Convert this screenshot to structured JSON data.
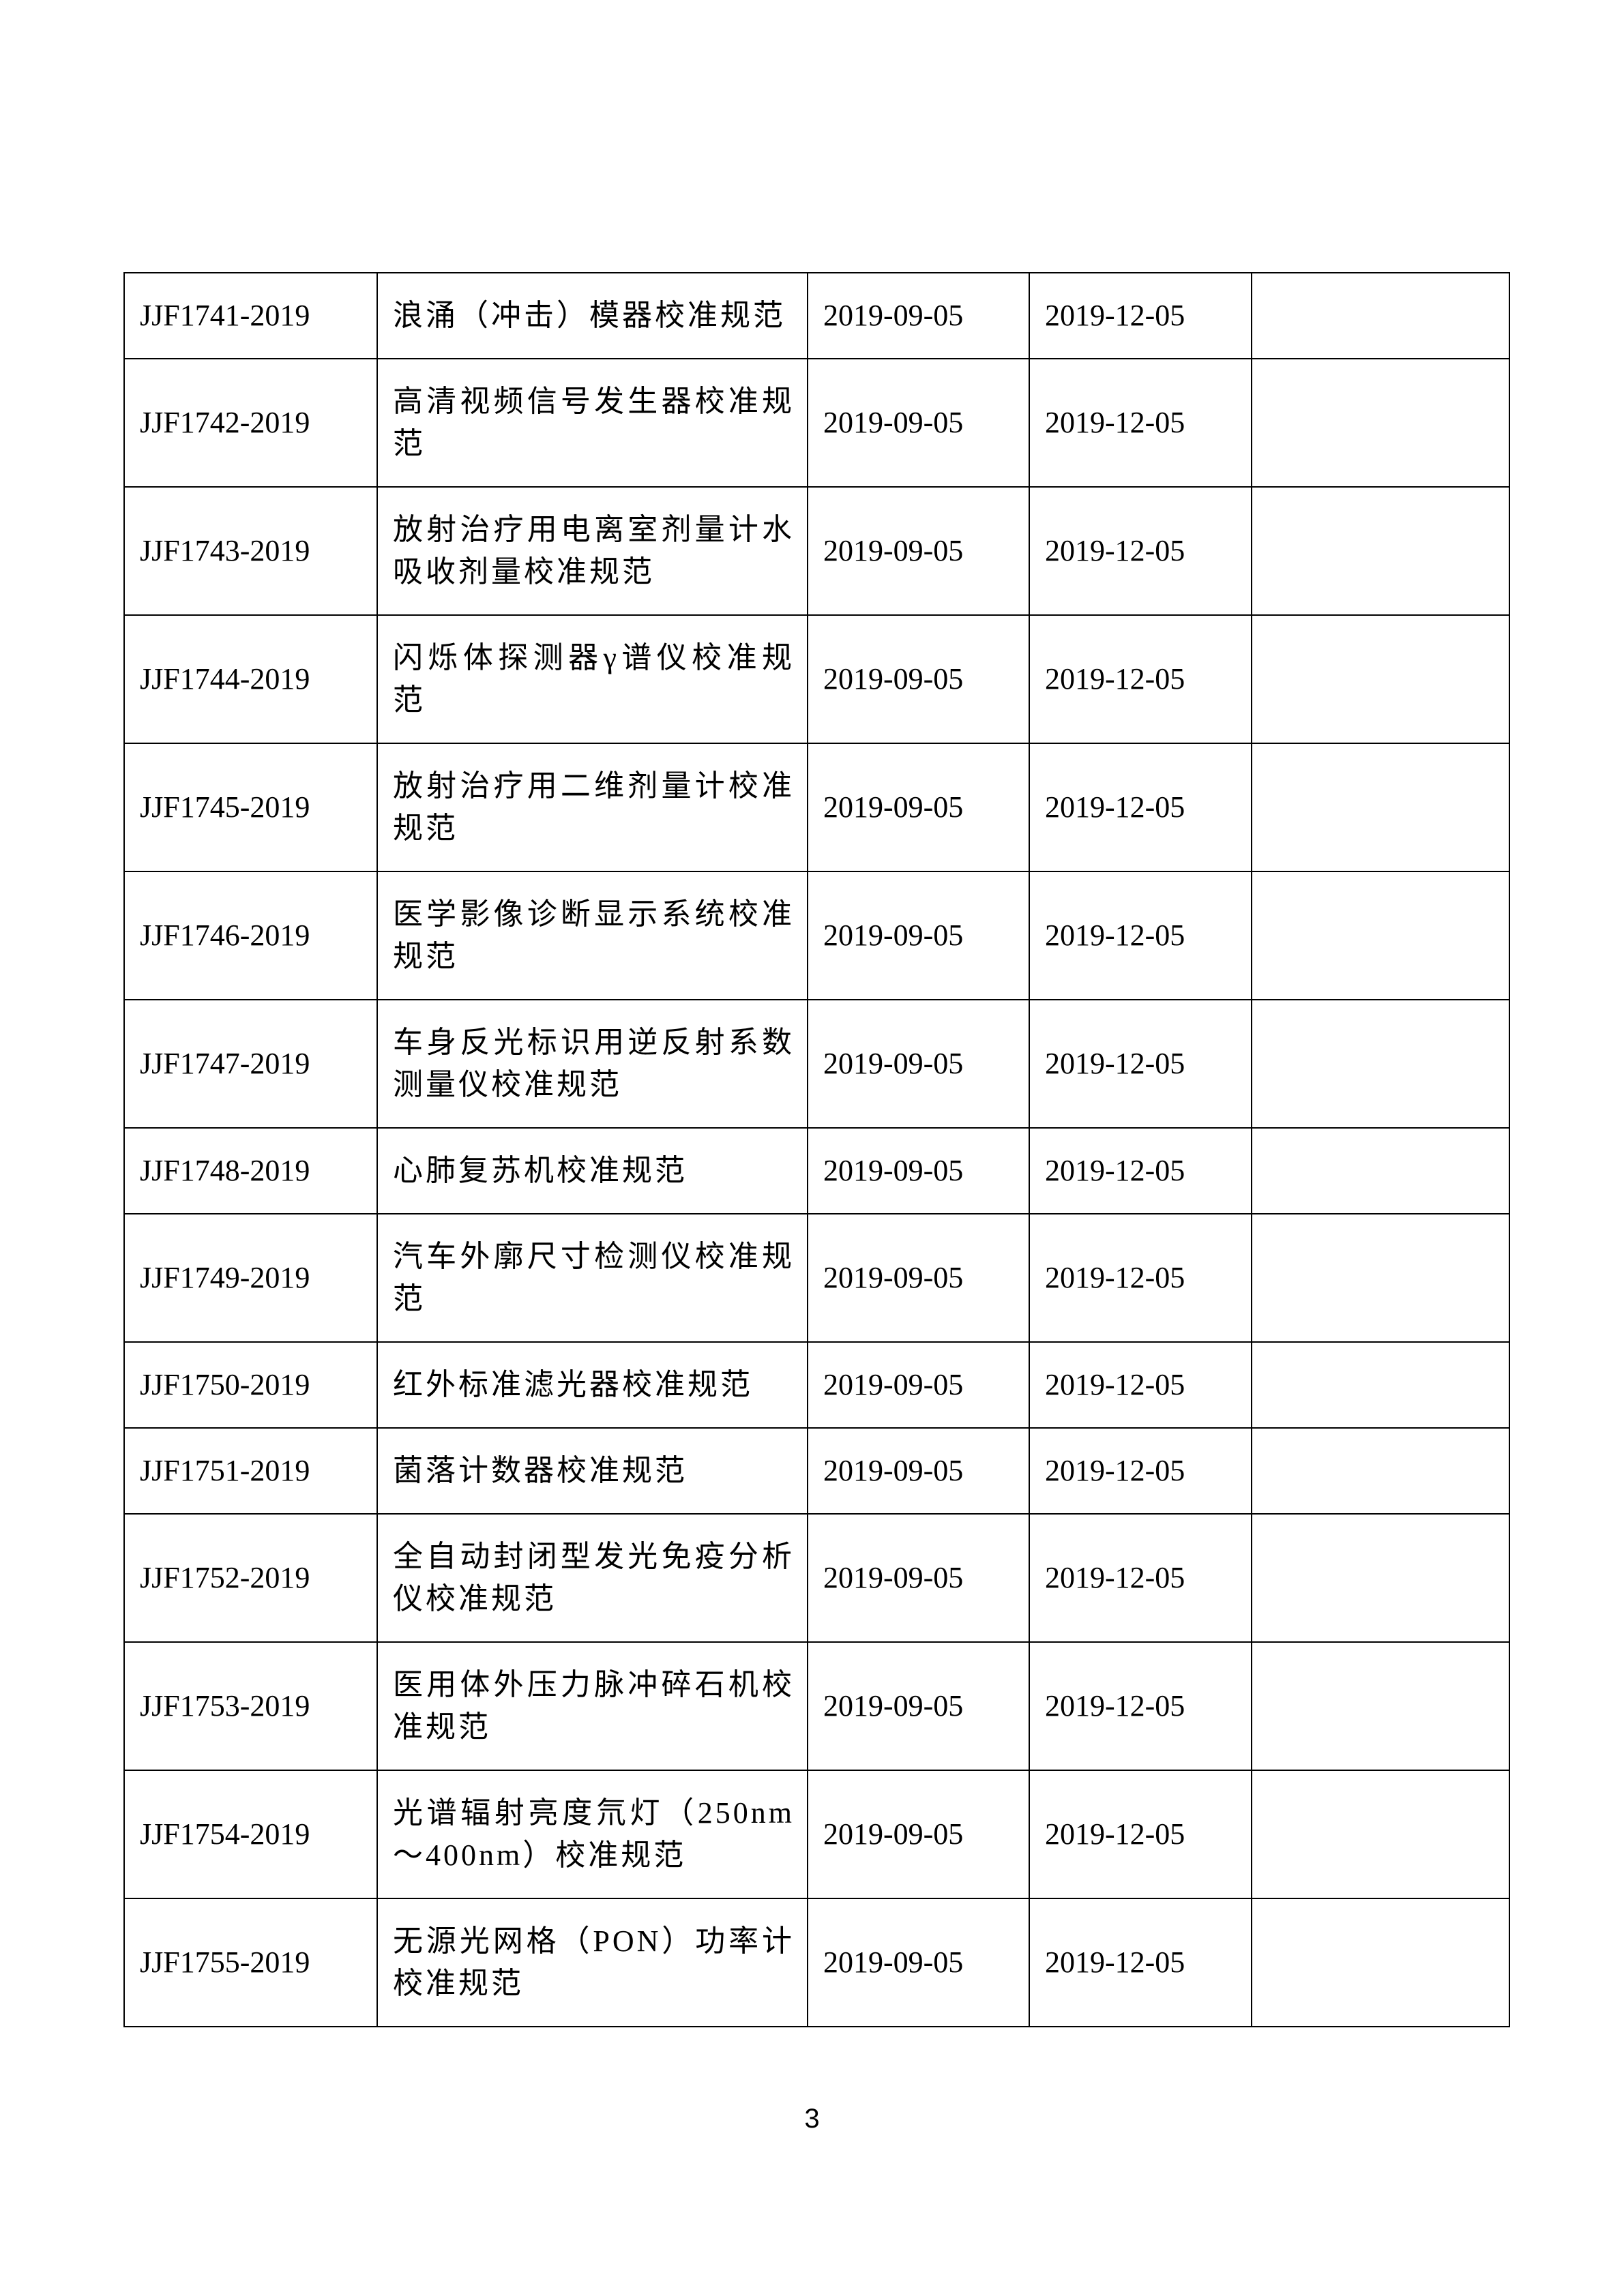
{
  "rows": [
    {
      "code": "JJF1741-2019",
      "name": "浪涌（冲击）模器校准规范",
      "issue": "2019-09-05",
      "effective": "2019-12-05",
      "note": ""
    },
    {
      "code": "JJF1742-2019",
      "name": "高清视频信号发生器校准规范",
      "issue": "2019-09-05",
      "effective": "2019-12-05",
      "note": ""
    },
    {
      "code": "JJF1743-2019",
      "name": "放射治疗用电离室剂量计水吸收剂量校准规范",
      "issue": "2019-09-05",
      "effective": "2019-12-05",
      "note": ""
    },
    {
      "code": "JJF1744-2019",
      "name": "闪烁体探测器γ谱仪校准规范",
      "issue": "2019-09-05",
      "effective": "2019-12-05",
      "note": ""
    },
    {
      "code": "JJF1745-2019",
      "name": "放射治疗用二维剂量计校准规范",
      "issue": "2019-09-05",
      "effective": "2019-12-05",
      "note": ""
    },
    {
      "code": "JJF1746-2019",
      "name": "医学影像诊断显示系统校准规范",
      "issue": "2019-09-05",
      "effective": "2019-12-05",
      "note": ""
    },
    {
      "code": "JJF1747-2019",
      "name": "车身反光标识用逆反射系数测量仪校准规范",
      "issue": "2019-09-05",
      "effective": "2019-12-05",
      "note": ""
    },
    {
      "code": "JJF1748-2019",
      "name": "心肺复苏机校准规范",
      "issue": "2019-09-05",
      "effective": "2019-12-05",
      "note": ""
    },
    {
      "code": "JJF1749-2019",
      "name": "汽车外廓尺寸检测仪校准规范",
      "issue": "2019-09-05",
      "effective": "2019-12-05",
      "note": ""
    },
    {
      "code": "JJF1750-2019",
      "name": "红外标准滤光器校准规范",
      "issue": "2019-09-05",
      "effective": "2019-12-05",
      "note": ""
    },
    {
      "code": "JJF1751-2019",
      "name": "菌落计数器校准规范",
      "issue": "2019-09-05",
      "effective": "2019-12-05",
      "note": ""
    },
    {
      "code": "JJF1752-2019",
      "name": "全自动封闭型发光免疫分析仪校准规范",
      "issue": "2019-09-05",
      "effective": "2019-12-05",
      "note": ""
    },
    {
      "code": "JJF1753-2019",
      "name": "医用体外压力脉冲碎石机校准规范",
      "issue": "2019-09-05",
      "effective": "2019-12-05",
      "note": ""
    },
    {
      "code": "JJF1754-2019",
      "name": "光谱辐射亮度氘灯（250nm～400nm）校准规范",
      "issue": "2019-09-05",
      "effective": "2019-12-05",
      "note": ""
    },
    {
      "code": "JJF1755-2019",
      "name": "无源光网格（PON）功率计校准规范",
      "issue": "2019-09-05",
      "effective": "2019-12-05",
      "note": ""
    }
  ],
  "page_number": "3"
}
